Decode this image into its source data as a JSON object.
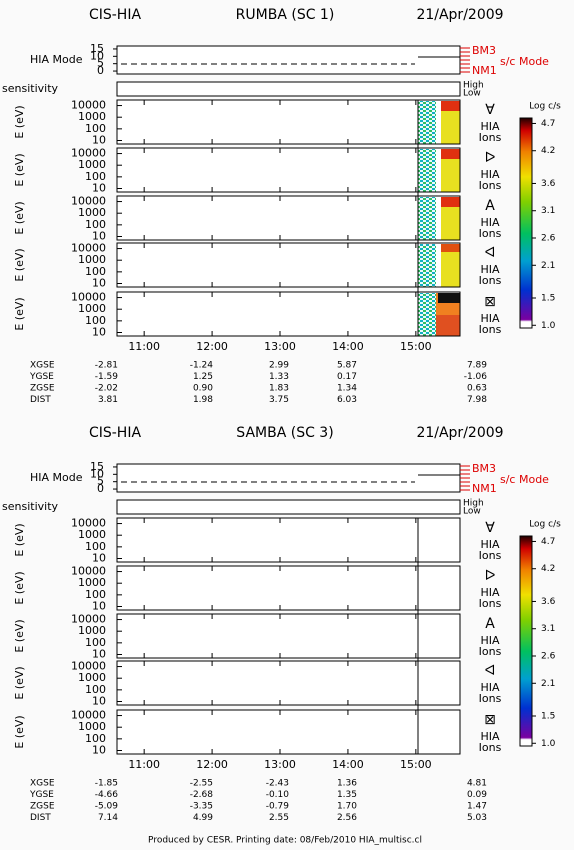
{
  "footer": "Produced by CESR.   Printing date: 08/Feb/2010   HIA_multisc.cl",
  "chart_data": [
    {
      "type": "spectrogram",
      "instrument": "CIS-HIA",
      "title": "RUMBA (SC 1)",
      "date": "21/Apr/2009",
      "mode_label": "HIA Mode",
      "mode_ylim": [
        -2,
        17
      ],
      "mode_ticks": [
        15,
        10,
        5,
        0
      ],
      "mode_levels": [
        "BM3",
        "NM1"
      ],
      "mode_title": "s/c Mode",
      "sensitivity_label": "sensitivity",
      "sensitivity_levels": [
        "High",
        "Low"
      ],
      "y_label": "E (eV)",
      "log_y": true,
      "ylim": [
        5,
        30000
      ],
      "yticks": [
        10,
        100,
        1000,
        10000
      ],
      "panels": [
        {
          "symbol": "∀",
          "label": [
            "HIA",
            "Ions"
          ]
        },
        {
          "symbol": "ᐅ",
          "label": [
            "HIA",
            "Ions"
          ]
        },
        {
          "symbol": "A",
          "label": [
            "HIA",
            "Ions"
          ]
        },
        {
          "symbol": "ᐊ",
          "label": [
            "HIA",
            "Ions"
          ]
        },
        {
          "symbol": "⊠",
          "label": [
            "HIA",
            "Ions"
          ]
        }
      ],
      "xlim": [
        10.6,
        15.65
      ],
      "xticks": [
        {
          "value": 11,
          "label": "11:00"
        },
        {
          "value": 12,
          "label": "12:00"
        },
        {
          "value": 13,
          "label": "13:00"
        },
        {
          "value": 14,
          "label": "14:00"
        },
        {
          "value": 15,
          "label": "15:00"
        }
      ],
      "colorbar": {
        "title": "Log c/s",
        "clim": [
          0.95,
          4.8
        ],
        "ticks": [
          {
            "value": 1,
            "label": "1.0"
          },
          1.5,
          2.1,
          2.6,
          3.1,
          3.6,
          4.2,
          4.7
        ]
      },
      "ephemeris": [
        {
          "name": "XGSE",
          "values": [
            "-2.81",
            "-1.24",
            "2.99",
            "5.87",
            "7.89"
          ]
        },
        {
          "name": "YGSE",
          "values": [
            "-1.59",
            "1.25",
            "1.33",
            "0.17",
            "-1.06"
          ]
        },
        {
          "name": "ZGSE",
          "values": [
            "-2.02",
            "0.90",
            "1.83",
            "1.34",
            "0.63"
          ]
        },
        {
          "name": "DIST",
          "values": [
            "3.81",
            "1.98",
            "3.75",
            "6.03",
            "7.98"
          ]
        }
      ]
    },
    {
      "type": "spectrogram",
      "instrument": "CIS-HIA",
      "title": "SAMBA (SC 3)",
      "date": "21/Apr/2009",
      "mode_label": "HIA Mode",
      "mode_ylim": [
        -2,
        17
      ],
      "mode_ticks": [
        15,
        10,
        5,
        0
      ],
      "mode_levels": [
        "BM3",
        "NM1"
      ],
      "mode_title": "s/c Mode",
      "sensitivity_label": "sensitivity",
      "sensitivity_levels": [
        "High",
        "Low"
      ],
      "y_label": "E (eV)",
      "log_y": true,
      "ylim": [
        5,
        30000
      ],
      "yticks": [
        10,
        100,
        1000,
        10000
      ],
      "panels": [
        {
          "symbol": "∀",
          "label": [
            "HIA",
            "Ions"
          ]
        },
        {
          "symbol": "ᐅ",
          "label": [
            "HIA",
            "Ions"
          ]
        },
        {
          "symbol": "A",
          "label": [
            "HIA",
            "Ions"
          ]
        },
        {
          "symbol": "ᐊ",
          "label": [
            "HIA",
            "Ions"
          ]
        },
        {
          "symbol": "⊠",
          "label": [
            "HIA",
            "Ions"
          ]
        }
      ],
      "xlim": [
        10.6,
        15.65
      ],
      "xticks": [
        {
          "value": 11,
          "label": "11:00"
        },
        {
          "value": 12,
          "label": "12:00"
        },
        {
          "value": 13,
          "label": "13:00"
        },
        {
          "value": 14,
          "label": "14:00"
        },
        {
          "value": 15,
          "label": "15:00"
        }
      ],
      "colorbar": {
        "title": "Log c/s",
        "clim": [
          0.95,
          4.8
        ],
        "ticks": [
          {
            "value": 1,
            "label": "1.0"
          },
          1.5,
          2.1,
          2.6,
          3.1,
          3.6,
          4.2,
          4.7
        ]
      },
      "ephemeris": [
        {
          "name": "XGSE",
          "values": [
            "-1.85",
            "-2.55",
            "-2.43",
            "1.36",
            "4.81"
          ]
        },
        {
          "name": "YGSE",
          "values": [
            "-4.66",
            "-2.68",
            "-0.10",
            "1.35",
            "0.09"
          ]
        },
        {
          "name": "ZGSE",
          "values": [
            "-5.09",
            "-3.35",
            "-0.79",
            "1.70",
            "1.47"
          ]
        },
        {
          "name": "DIST",
          "values": [
            "7.14",
            "4.99",
            "2.55",
            "2.56",
            "5.03"
          ]
        }
      ]
    }
  ]
}
